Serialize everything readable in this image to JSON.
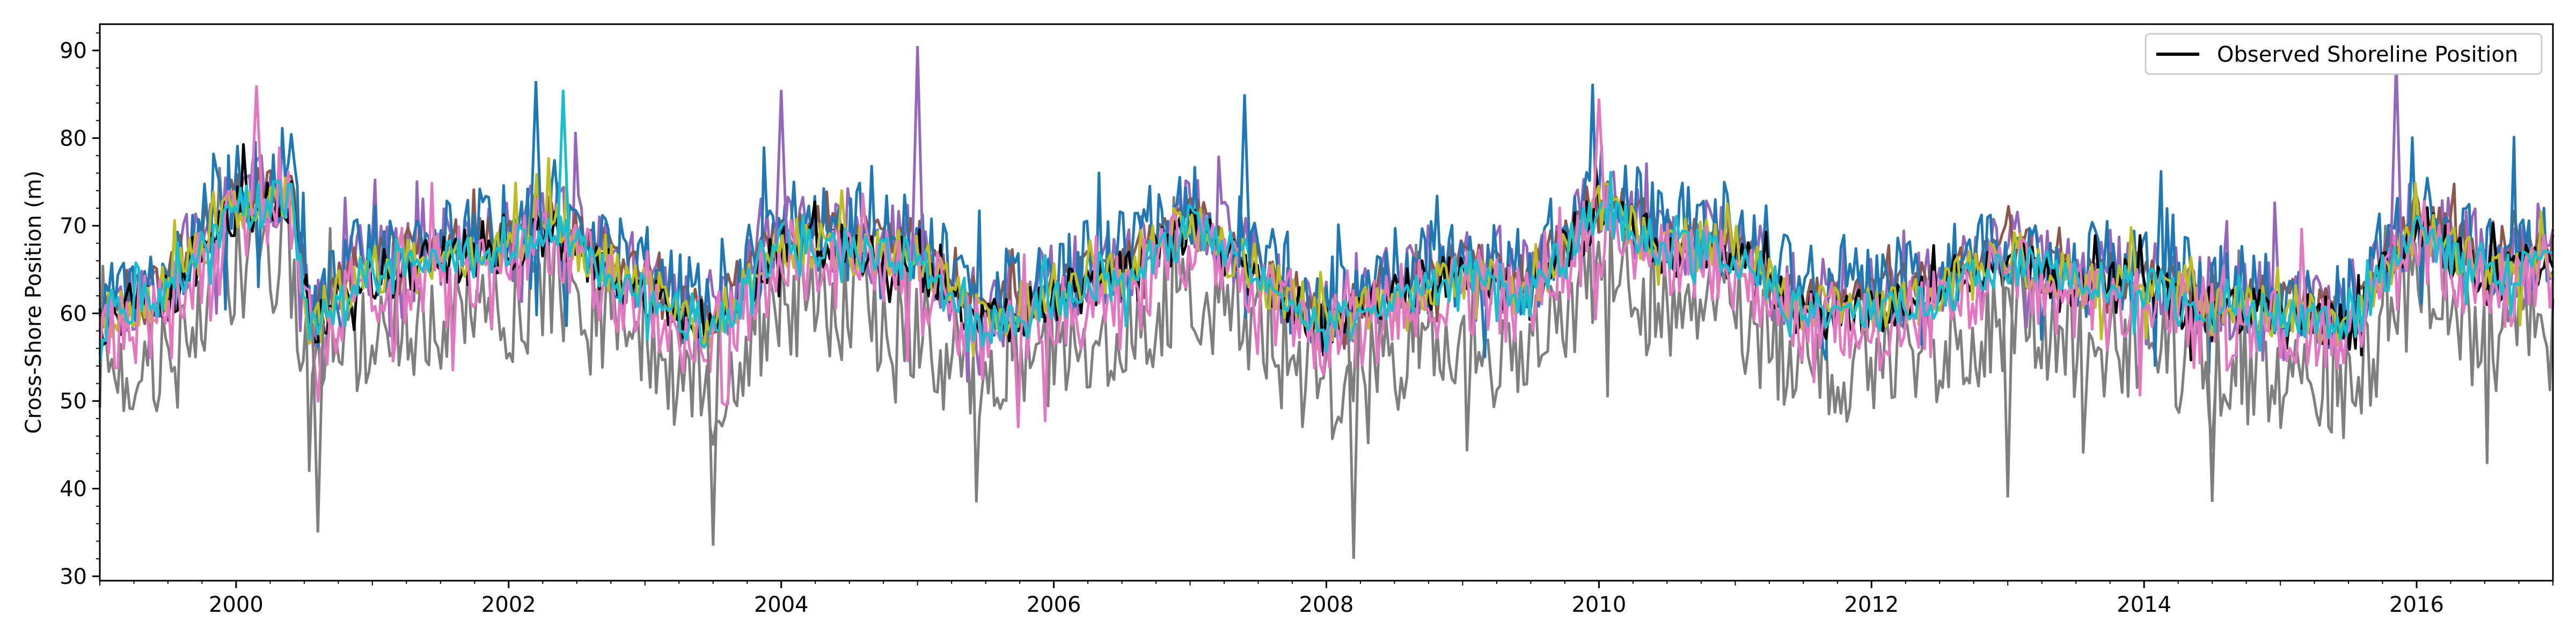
{
  "chart_data": {
    "type": "line",
    "title": "",
    "xlabel": "",
    "ylabel": "Cross-Shore Position (m)",
    "xlim": [
      1999.0,
      2017.0
    ],
    "ylim": [
      29.5,
      93.0
    ],
    "x_ticks": [
      2000,
      2002,
      2004,
      2006,
      2008,
      2010,
      2012,
      2014,
      2016
    ],
    "x_tick_labels": [
      "2000",
      "2002",
      "2004",
      "2006",
      "2008",
      "2010",
      "2012",
      "2014",
      "2016"
    ],
    "y_ticks": [
      30,
      40,
      50,
      60,
      70,
      80,
      90
    ],
    "y_tick_labels": [
      "30",
      "40",
      "50",
      "60",
      "70",
      "80",
      "90"
    ],
    "grid": false,
    "legend": {
      "placement": "top-right",
      "entries": [
        {
          "label": "Observed Shoreline Position",
          "color": "#000000"
        }
      ]
    },
    "seasonal_mean": [
      {
        "x": 1999.0,
        "y": 59
      },
      {
        "x": 1999.5,
        "y": 62
      },
      {
        "x": 2000.0,
        "y": 72
      },
      {
        "x": 2000.4,
        "y": 73
      },
      {
        "x": 2000.55,
        "y": 58
      },
      {
        "x": 2000.9,
        "y": 64
      },
      {
        "x": 2001.5,
        "y": 66
      },
      {
        "x": 2002.0,
        "y": 67
      },
      {
        "x": 2002.3,
        "y": 70
      },
      {
        "x": 2002.8,
        "y": 64
      },
      {
        "x": 2003.5,
        "y": 58
      },
      {
        "x": 2004.0,
        "y": 68
      },
      {
        "x": 2004.5,
        "y": 67
      },
      {
        "x": 2005.0,
        "y": 66
      },
      {
        "x": 2005.5,
        "y": 58
      },
      {
        "x": 2006.0,
        "y": 62
      },
      {
        "x": 2006.5,
        "y": 64
      },
      {
        "x": 2007.0,
        "y": 70
      },
      {
        "x": 2007.5,
        "y": 64
      },
      {
        "x": 2008.0,
        "y": 58
      },
      {
        "x": 2008.5,
        "y": 62
      },
      {
        "x": 2009.0,
        "y": 64
      },
      {
        "x": 2009.5,
        "y": 62
      },
      {
        "x": 2010.0,
        "y": 72
      },
      {
        "x": 2010.5,
        "y": 67
      },
      {
        "x": 2011.0,
        "y": 67
      },
      {
        "x": 2011.5,
        "y": 60
      },
      {
        "x": 2012.0,
        "y": 60
      },
      {
        "x": 2012.5,
        "y": 62
      },
      {
        "x": 2013.0,
        "y": 66
      },
      {
        "x": 2013.5,
        "y": 63
      },
      {
        "x": 2014.0,
        "y": 63
      },
      {
        "x": 2014.5,
        "y": 60
      },
      {
        "x": 2015.0,
        "y": 60
      },
      {
        "x": 2015.5,
        "y": 58
      },
      {
        "x": 2016.0,
        "y": 70
      },
      {
        "x": 2016.5,
        "y": 64
      },
      {
        "x": 2017.0,
        "y": 66
      }
    ],
    "series": [
      {
        "color": "#7f7f7f",
        "offset": -6.5,
        "spread": 6.5,
        "jitter": 1.3,
        "seed": 7
      },
      {
        "color": "#9467bd",
        "offset": 1.5,
        "spread": 4.5,
        "jitter": 1.0,
        "seed": 11
      },
      {
        "color": "#8c564b",
        "offset": 2.0,
        "spread": 2.5,
        "jitter": 0.7,
        "seed": 13
      },
      {
        "color": "#1f77b4",
        "offset": 2.5,
        "spread": 5.5,
        "jitter": 1.0,
        "seed": 17
      },
      {
        "color": "#000000",
        "offset": 0.0,
        "spread": 3.0,
        "jitter": 0.6,
        "seed": 19
      },
      {
        "color": "#bcbd22",
        "offset": 0.5,
        "spread": 3.0,
        "jitter": 0.8,
        "seed": 23
      },
      {
        "color": "#e377c2",
        "offset": -1.5,
        "spread": 5.0,
        "jitter": 1.1,
        "seed": 29
      },
      {
        "color": "#17becf",
        "offset": 0.0,
        "spread": 2.5,
        "jitter": 0.6,
        "seed": 31
      }
    ],
    "peaks": [
      {
        "x": 2000.15,
        "y": 86,
        "color": "#e377c2"
      },
      {
        "x": 2002.2,
        "y": 86.5,
        "color": "#1f77b4"
      },
      {
        "x": 2002.4,
        "y": 85.5,
        "color": "#17becf"
      },
      {
        "x": 2004.0,
        "y": 85.5,
        "color": "#9467bd"
      },
      {
        "x": 2005.0,
        "y": 90.5,
        "color": "#9467bd"
      },
      {
        "x": 2007.4,
        "y": 85,
        "color": "#1f77b4"
      },
      {
        "x": 2010.0,
        "y": 84.5,
        "color": "#e377c2"
      },
      {
        "x": 2015.85,
        "y": 89,
        "color": "#9467bd"
      },
      {
        "x": 2000.6,
        "y": 35,
        "color": "#7f7f7f"
      },
      {
        "x": 2003.5,
        "y": 33.5,
        "color": "#7f7f7f"
      },
      {
        "x": 2008.2,
        "y": 32,
        "color": "#7f7f7f"
      },
      {
        "x": 2013.0,
        "y": 39,
        "color": "#7f7f7f"
      },
      {
        "x": 2014.5,
        "y": 38.5,
        "color": "#7f7f7f"
      }
    ]
  }
}
